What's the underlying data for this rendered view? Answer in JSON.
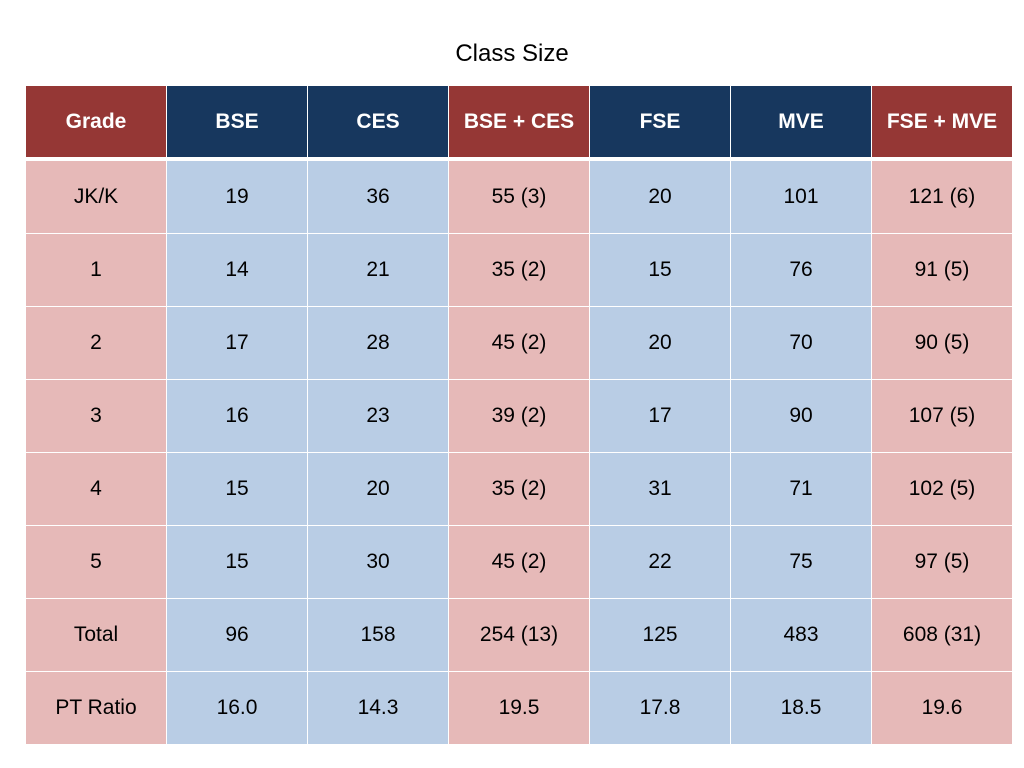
{
  "title": "Class Size",
  "colors": {
    "header_red": "#953735",
    "header_blue": "#17375e",
    "cell_red": "#e6b9b8",
    "cell_blue": "#b9cde5"
  },
  "table": {
    "headers": [
      "Grade",
      "BSE",
      "CES",
      "BSE + CES",
      "FSE",
      "MVE",
      "FSE + MVE"
    ],
    "rows": [
      [
        "JK/K",
        "19",
        "36",
        "55 (3)",
        "20",
        "101",
        "121 (6)"
      ],
      [
        "1",
        "14",
        "21",
        "35 (2)",
        "15",
        "76",
        "91 (5)"
      ],
      [
        "2",
        "17",
        "28",
        "45 (2)",
        "20",
        "70",
        "90 (5)"
      ],
      [
        "3",
        "16",
        "23",
        "39 (2)",
        "17",
        "90",
        "107 (5)"
      ],
      [
        "4",
        "15",
        "20",
        "35 (2)",
        "31",
        "71",
        "102 (5)"
      ],
      [
        "5",
        "15",
        "30",
        "45 (2)",
        "22",
        "75",
        "97 (5)"
      ],
      [
        "Total",
        "96",
        "158",
        "254 (13)",
        "125",
        "483",
        "608 (31)"
      ],
      [
        "PT Ratio",
        "16.0",
        "14.3",
        "19.5",
        "17.8",
        "18.5",
        "19.6"
      ]
    ]
  }
}
